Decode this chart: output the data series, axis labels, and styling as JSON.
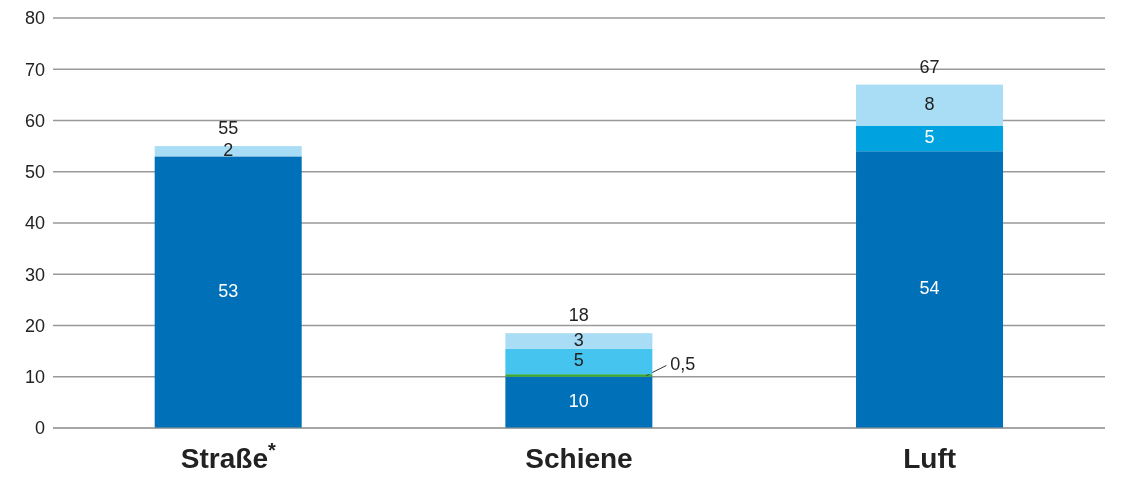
{
  "chart_data": {
    "type": "bar",
    "stacked": true,
    "categories": [
      "Straße$^{*}$",
      "Schiene",
      "Luft"
    ],
    "series": [
      {
        "color": "#0070b8",
        "values": [
          53,
          10,
          54
        ],
        "value_labels": [
          "53",
          "10",
          "54"
        ]
      },
      {
        "color": "#3aaa35",
        "values": [
          null,
          0.5,
          null
        ],
        "value_labels": [
          null,
          "0,5",
          null
        ]
      },
      {
        "color": "#45c4f0",
        "colors": [
          "#45c4f0",
          "#45c4f0",
          "#00a3e0"
        ],
        "values": [
          null,
          5,
          5
        ],
        "value_labels": [
          null,
          "5",
          "5"
        ]
      },
      {
        "color": "#a8ddf5",
        "values": [
          2,
          3,
          8
        ],
        "value_labels": [
          "2",
          "3",
          "8"
        ]
      }
    ],
    "totals": [
      "55",
      "18",
      "67"
    ],
    "ylim": [
      0,
      80
    ],
    "yticks": [
      0,
      10,
      20,
      30,
      40,
      50,
      60,
      70,
      80
    ],
    "grid": "y"
  }
}
